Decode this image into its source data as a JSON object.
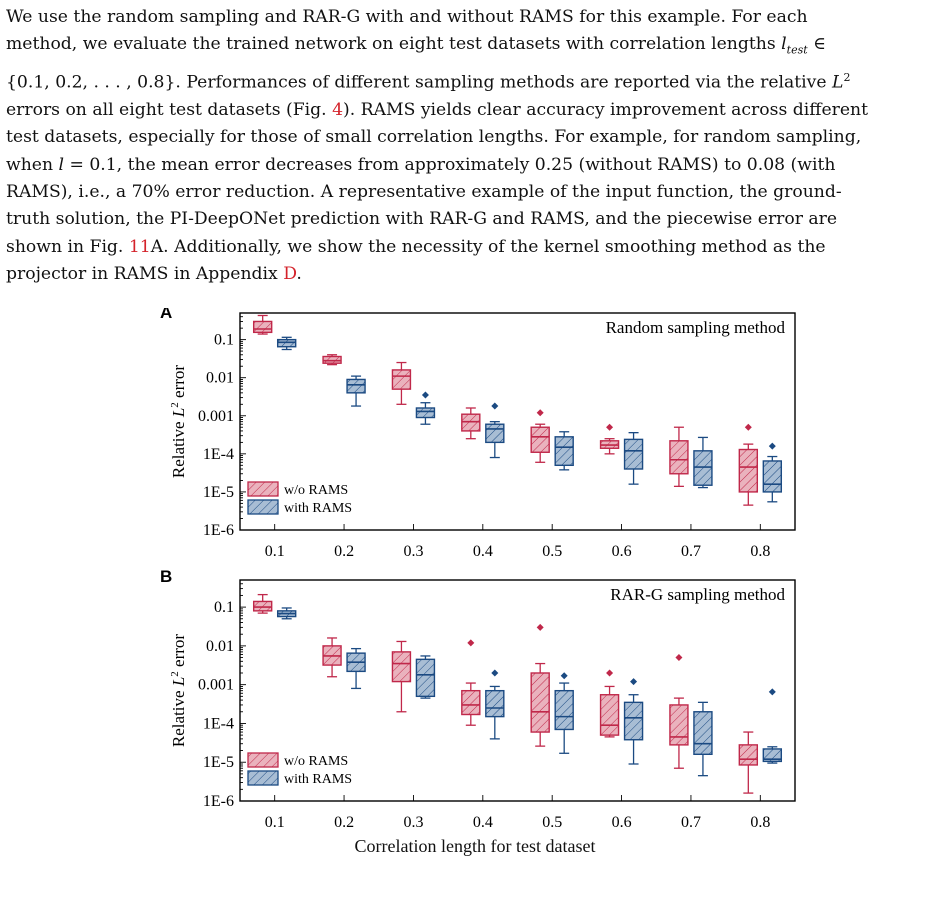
{
  "paragraph": {
    "lines": [
      [
        "We use the random sampling and RAR-G with and without RAMS for this example. For each"
      ],
      [
        "method, we evaluate the trained network on eight test datasets with correlation lengths "
      ],
      [
        "{0.1, 0.2, . . . , 0.8}.  Performances of different sampling methods are reported via the relative "
      ],
      [
        "errors on all eight test datasets (Fig. ",
        "). RAMS yields clear accuracy improvement across different"
      ],
      [
        "test datasets, especially for those of small correlation lengths. For example, for random sampling,"
      ],
      [
        "when ",
        " = 0.1, the mean error decreases from approximately 0.25 (without RAMS) to 0.08 (with"
      ],
      [
        "RAMS), i.e., a 70% error reduction.  A representative example of the input function, the ground-"
      ],
      [
        "truth solution, the PI-DeepONet prediction with RAR-G and RAMS, and the piecewise error are"
      ],
      [
        "shown in Fig. ",
        "A. Additionally, we show the necessity of the kernel smoothing method as the"
      ],
      [
        "projector in RAMS in Appendix ",
        "."
      ]
    ],
    "ref_fig4": "4",
    "ref_fig11": "11",
    "ref_appD": "D",
    "math_l_test": "l",
    "math_test_sub": "test",
    "math_in": "∈",
    "math_L": "L",
    "math_L_sup": "2",
    "math_l": "l"
  },
  "colors": {
    "wo_rams": "#c0284a",
    "wo_rams_fill": "#eab2bd",
    "with_rams": "#1b4a82",
    "with_rams_fill": "#a8bdd4"
  },
  "chart_data": [
    {
      "type": "box",
      "panel_label": "A",
      "title": "Random sampling method",
      "ylabel": "Relative L^2 error",
      "ylabel_main": "Relative ",
      "ylabel_L": "L",
      "ylabel_sup": "2",
      "ylabel_tail": " error",
      "yscale": "log",
      "ylim": [
        1e-06,
        0.5
      ],
      "yticks": [
        0.1,
        0.01,
        0.001,
        0.0001,
        1e-05,
        1e-06
      ],
      "ytick_labels": [
        "0.1",
        "0.01",
        "0.001",
        "1E-4",
        "1E-5",
        "1E-6"
      ],
      "categories": [
        "0.1",
        "0.2",
        "0.3",
        "0.4",
        "0.5",
        "0.6",
        "0.7",
        "0.8"
      ],
      "legend": [
        "w/o RAMS",
        "with RAMS"
      ],
      "legend_position": "bottom-left",
      "series": [
        {
          "name": "w/o RAMS",
          "boxes": [
            {
              "whislo": 0.14,
              "q1": 0.155,
              "med": 0.19,
              "q3": 0.3,
              "whishi": 0.43,
              "outliers": []
            },
            {
              "whislo": 0.022,
              "q1": 0.024,
              "med": 0.028,
              "q3": 0.036,
              "whishi": 0.04,
              "outliers": []
            },
            {
              "whislo": 0.002,
              "q1": 0.005,
              "med": 0.011,
              "q3": 0.016,
              "whishi": 0.025,
              "outliers": []
            },
            {
              "whislo": 0.00025,
              "q1": 0.0004,
              "med": 0.0007,
              "q3": 0.0011,
              "whishi": 0.0016,
              "outliers": []
            },
            {
              "whislo": 6e-05,
              "q1": 0.00011,
              "med": 0.00028,
              "q3": 0.0005,
              "whishi": 0.0006,
              "outliers": [
                0.0012
              ]
            },
            {
              "whislo": 0.0001,
              "q1": 0.00014,
              "med": 0.00017,
              "q3": 0.00022,
              "whishi": 0.00025,
              "outliers": [
                0.0005
              ]
            },
            {
              "whislo": 1.4e-05,
              "q1": 3e-05,
              "med": 7e-05,
              "q3": 0.00022,
              "whishi": 0.0005,
              "outliers": []
            },
            {
              "whislo": 4.5e-06,
              "q1": 1e-05,
              "med": 4.5e-05,
              "q3": 0.00013,
              "whishi": 0.00018,
              "outliers": [
                0.0005
              ]
            }
          ]
        },
        {
          "name": "with RAMS",
          "boxes": [
            {
              "whislo": 0.055,
              "q1": 0.065,
              "med": 0.085,
              "q3": 0.1,
              "whishi": 0.115,
              "outliers": []
            },
            {
              "whislo": 0.0018,
              "q1": 0.004,
              "med": 0.0065,
              "q3": 0.009,
              "whishi": 0.011,
              "outliers": []
            },
            {
              "whislo": 0.0006,
              "q1": 0.0009,
              "med": 0.0013,
              "q3": 0.0016,
              "whishi": 0.0022,
              "outliers": [
                0.0035
              ]
            },
            {
              "whislo": 8e-05,
              "q1": 0.0002,
              "med": 0.00045,
              "q3": 0.0006,
              "whishi": 0.0007,
              "outliers": [
                0.0018
              ]
            },
            {
              "whislo": 3.8e-05,
              "q1": 5e-05,
              "med": 0.00015,
              "q3": 0.00028,
              "whishi": 0.00038,
              "outliers": []
            },
            {
              "whislo": 1.6e-05,
              "q1": 4e-05,
              "med": 0.00012,
              "q3": 0.00024,
              "whishi": 0.00036,
              "outliers": []
            },
            {
              "whislo": 1.3e-05,
              "q1": 1.5e-05,
              "med": 4.5e-05,
              "q3": 0.00012,
              "whishi": 0.00027,
              "outliers": []
            },
            {
              "whislo": 5.5e-06,
              "q1": 1e-05,
              "med": 1.6e-05,
              "q3": 6.5e-05,
              "whishi": 8.5e-05,
              "outliers": [
                0.00016
              ]
            }
          ]
        }
      ]
    },
    {
      "type": "box",
      "panel_label": "B",
      "title": "RAR-G sampling method",
      "ylabel": "Relative L^2 error",
      "ylabel_main": "Relative ",
      "ylabel_L": "L",
      "ylabel_sup": "2",
      "ylabel_tail": " error",
      "xlabel": "Correlation length for test dataset",
      "yscale": "log",
      "ylim": [
        1e-06,
        0.5
      ],
      "yticks": [
        0.1,
        0.01,
        0.001,
        0.0001,
        1e-05,
        1e-06
      ],
      "ytick_labels": [
        "0.1",
        "0.01",
        "0.001",
        "1E-4",
        "1E-5",
        "1E-6"
      ],
      "categories": [
        "0.1",
        "0.2",
        "0.3",
        "0.4",
        "0.5",
        "0.6",
        "0.7",
        "0.8"
      ],
      "legend": [
        "w/o RAMS",
        "with RAMS"
      ],
      "legend_position": "bottom-left",
      "series": [
        {
          "name": "w/o RAMS",
          "boxes": [
            {
              "whislo": 0.07,
              "q1": 0.08,
              "med": 0.1,
              "q3": 0.14,
              "whishi": 0.21,
              "outliers": []
            },
            {
              "whislo": 0.0016,
              "q1": 0.0032,
              "med": 0.0055,
              "q3": 0.01,
              "whishi": 0.016,
              "outliers": []
            },
            {
              "whislo": 0.0002,
              "q1": 0.0012,
              "med": 0.0035,
              "q3": 0.007,
              "whishi": 0.013,
              "outliers": []
            },
            {
              "whislo": 9e-05,
              "q1": 0.00017,
              "med": 0.0003,
              "q3": 0.0007,
              "whishi": 0.0011,
              "outliers": [
                0.012
              ]
            },
            {
              "whislo": 2.6e-05,
              "q1": 6e-05,
              "med": 0.0002,
              "q3": 0.002,
              "whishi": 0.0035,
              "outliers": [
                0.03
              ]
            },
            {
              "whislo": 4.5e-05,
              "q1": 5e-05,
              "med": 9e-05,
              "q3": 0.00055,
              "whishi": 0.0009,
              "outliers": [
                0.002
              ]
            },
            {
              "whislo": 7e-06,
              "q1": 2.8e-05,
              "med": 4.5e-05,
              "q3": 0.0003,
              "whishi": 0.00045,
              "outliers": [
                0.005
              ]
            },
            {
              "whislo": 1.6e-06,
              "q1": 8.5e-06,
              "med": 1.2e-05,
              "q3": 2.8e-05,
              "whishi": 6e-05,
              "outliers": []
            }
          ]
        },
        {
          "name": "with RAMS",
          "boxes": [
            {
              "whislo": 0.05,
              "q1": 0.057,
              "med": 0.068,
              "q3": 0.08,
              "whishi": 0.095,
              "outliers": []
            },
            {
              "whislo": 0.0008,
              "q1": 0.0022,
              "med": 0.0038,
              "q3": 0.0065,
              "whishi": 0.0085,
              "outliers": []
            },
            {
              "whislo": 0.00045,
              "q1": 0.0005,
              "med": 0.0018,
              "q3": 0.0045,
              "whishi": 0.0055,
              "outliers": []
            },
            {
              "whislo": 4e-05,
              "q1": 0.00015,
              "med": 0.00025,
              "q3": 0.0007,
              "whishi": 0.0009,
              "outliers": [
                0.002
              ]
            },
            {
              "whislo": 1.7e-05,
              "q1": 7e-05,
              "med": 0.00015,
              "q3": 0.0007,
              "whishi": 0.0011,
              "outliers": [
                0.0017
              ]
            },
            {
              "whislo": 9e-06,
              "q1": 3.8e-05,
              "med": 0.00014,
              "q3": 0.00035,
              "whishi": 0.00055,
              "outliers": [
                0.0012
              ]
            },
            {
              "whislo": 4.5e-06,
              "q1": 1.6e-05,
              "med": 3e-05,
              "q3": 0.0002,
              "whishi": 0.00035,
              "outliers": []
            },
            {
              "whislo": 9.5e-06,
              "q1": 1.05e-05,
              "med": 1.2e-05,
              "q3": 2.2e-05,
              "whishi": 2.5e-05,
              "outliers": [
                0.00065
              ]
            }
          ]
        }
      ]
    }
  ]
}
